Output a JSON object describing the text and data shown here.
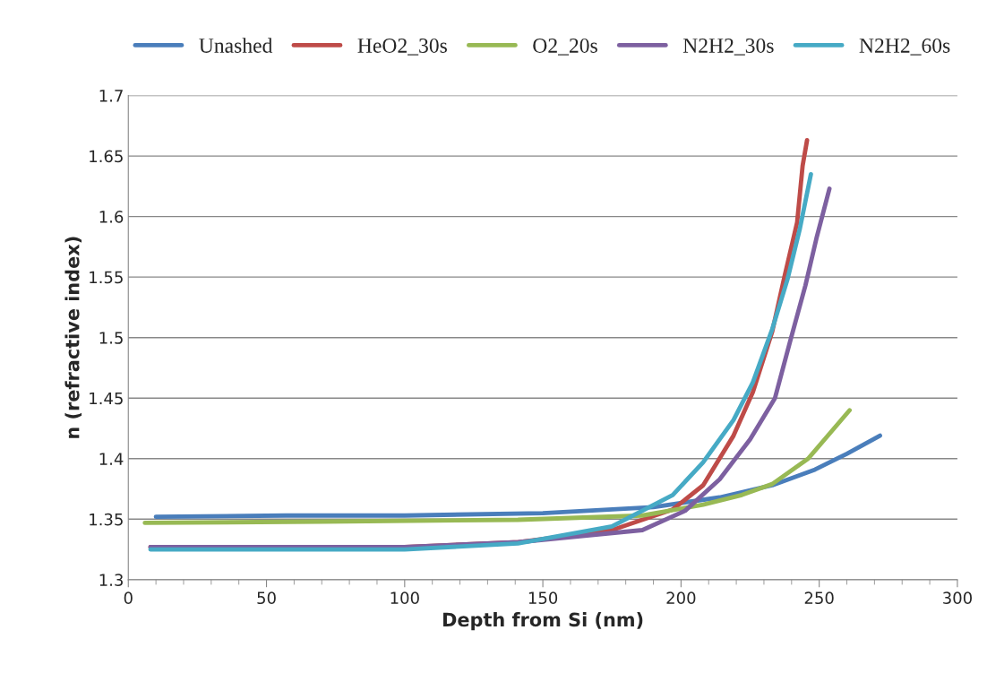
{
  "chart_data": {
    "type": "line",
    "xlabel": "Depth from Si (nm)",
    "ylabel": "n (refractive index)",
    "xlim": [
      0,
      300
    ],
    "xticks": [
      0,
      50,
      100,
      150,
      200,
      250,
      300
    ],
    "ylim": [
      1.3,
      1.7
    ],
    "yticks": [
      1.3,
      1.35,
      1.4,
      1.45,
      1.5,
      1.55,
      1.6,
      1.65,
      1.7
    ],
    "grid": "y",
    "legend": "top",
    "marker": "none",
    "line_style": "solid",
    "series": [
      {
        "name": "Unashed",
        "color": "#4a7ebb",
        "x": [
          10,
          57,
          100,
          150,
          190,
          214,
          233,
          248.5,
          260,
          272
        ],
        "values": [
          1.352,
          1.353,
          1.353,
          1.355,
          1.36,
          1.368,
          1.378,
          1.391,
          1.404,
          1.419
        ]
      },
      {
        "name": "HeO2_30s",
        "color": "#be4b48",
        "x": [
          8,
          100,
          141.5,
          175,
          197,
          208,
          219,
          226,
          233,
          237.5,
          242,
          244,
          245.6
        ],
        "values": [
          1.327,
          1.327,
          1.331,
          1.341,
          1.358,
          1.378,
          1.419,
          1.455,
          1.505,
          1.551,
          1.595,
          1.642,
          1.663
        ]
      },
      {
        "name": "O2_20s",
        "color": "#98b954",
        "x": [
          6,
          70,
          141,
          186,
          208,
          222,
          233,
          246,
          261
        ],
        "values": [
          1.347,
          1.348,
          1.3495,
          1.353,
          1.362,
          1.37,
          1.379,
          1.4,
          1.44
        ]
      },
      {
        "name": "N2H2_30s",
        "color": "#7d60a0",
        "x": [
          8,
          100,
          141,
          186,
          201.5,
          214,
          225,
          234,
          239.5,
          245,
          249,
          253.7
        ],
        "values": [
          1.327,
          1.327,
          1.331,
          1.341,
          1.357,
          1.383,
          1.416,
          1.45,
          1.497,
          1.543,
          1.582,
          1.623
        ]
      },
      {
        "name": "N2H2_60s",
        "color": "#46aac5",
        "x": [
          8,
          100,
          141,
          175,
          197,
          208,
          219,
          226,
          233,
          238.5,
          243,
          247
        ],
        "values": [
          1.325,
          1.325,
          1.33,
          1.344,
          1.37,
          1.397,
          1.432,
          1.463,
          1.507,
          1.548,
          1.59,
          1.635
        ]
      }
    ]
  }
}
